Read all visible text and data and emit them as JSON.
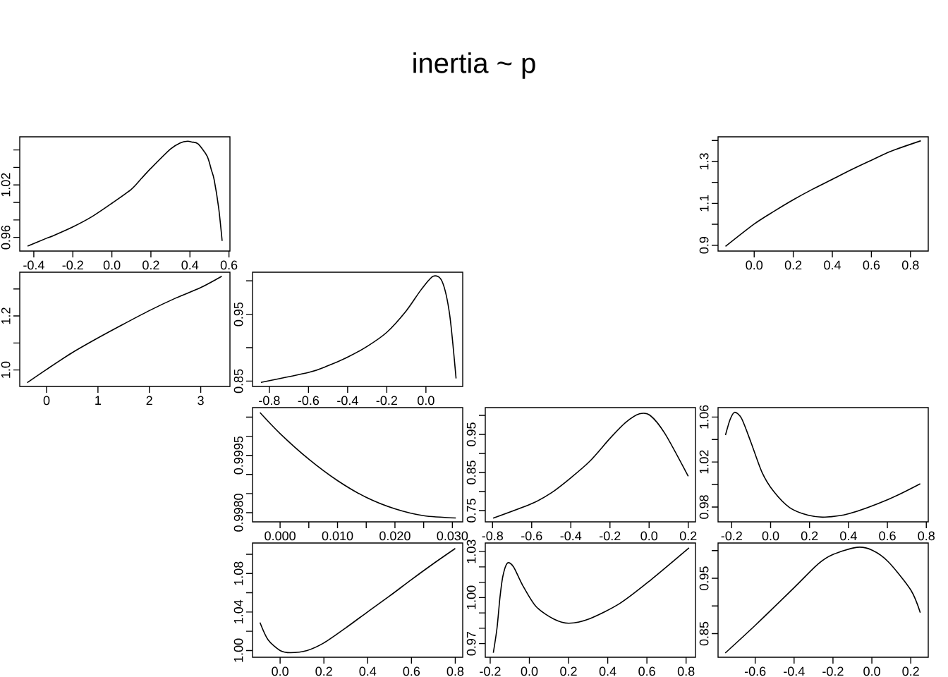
{
  "chart_data": [
    {
      "type": "line",
      "color": "#000000",
      "xlim": [
        -0.472,
        0.605
      ],
      "ylim": [
        0.9444,
        1.075
      ],
      "xticks": [
        {
          "value": -0.4,
          "label": "-0.4"
        },
        {
          "value": -0.2,
          "label": "-0.2"
        },
        {
          "value": 0,
          "label": "0.0"
        },
        {
          "value": 0.2,
          "label": "0.2"
        },
        {
          "value": 0.4,
          "label": "0.4"
        },
        {
          "value": 0.6,
          "label": "0.6"
        }
      ],
      "yticks": [
        {
          "value": 0.96,
          "label": "0.96"
        },
        {
          "value": 0.98,
          "label": null
        },
        {
          "value": 1.0,
          "label": null
        },
        {
          "value": 1.02,
          "label": "1.02"
        },
        {
          "value": 1.04,
          "label": null
        },
        {
          "value": 1.06,
          "label": null
        }
      ],
      "x": [
        -0.432,
        -0.335,
        -0.3,
        -0.2,
        -0.1,
        0,
        0.1,
        0.15,
        0.2,
        0.3,
        0.35,
        0.388,
        0.41,
        0.441,
        0.488,
        0.51,
        0.524,
        0.547,
        0.565
      ],
      "values": [
        0.95,
        0.959,
        0.962,
        0.972,
        0.984,
        0.999,
        1.015,
        1.027,
        1.039,
        1.061,
        1.068,
        1.07,
        1.069,
        1.067,
        1.053,
        1.037,
        1.026,
        0.994,
        0.956
      ]
    },
    {
      "type": "line",
      "color": "#000000",
      "xlim": [
        -0.185,
        0.891
      ],
      "ylim": [
        0.872,
        1.418
      ],
      "xticks": [
        {
          "value": 0,
          "label": "0.0"
        },
        {
          "value": 0.2,
          "label": "0.2"
        },
        {
          "value": 0.4,
          "label": "0.4"
        },
        {
          "value": 0.6,
          "label": "0.6"
        },
        {
          "value": 0.8,
          "label": "0.8"
        }
      ],
      "yticks": [
        {
          "value": 0.9,
          "label": "0.9"
        },
        {
          "value": 1.0,
          "label": null
        },
        {
          "value": 1.1,
          "label": "1.1"
        },
        {
          "value": 1.2,
          "label": null
        },
        {
          "value": 1.3,
          "label": "1.3"
        },
        {
          "value": 1.4,
          "label": null
        }
      ],
      "x": [
        -0.147,
        0,
        0.1,
        0.2,
        0.3,
        0.4,
        0.5,
        0.6,
        0.7,
        0.853
      ],
      "values": [
        0.894,
        1.001,
        1.061,
        1.117,
        1.168,
        1.215,
        1.262,
        1.306,
        1.349,
        1.399
      ]
    },
    {
      "type": "line",
      "color": "#000000",
      "xlim": [
        -0.522,
        3.569
      ],
      "ylim": [
        0.939,
        1.362
      ],
      "xticks": [
        0,
        1,
        2,
        3
      ],
      "yticks": [
        {
          "value": 1.0,
          "label": "1.0"
        },
        {
          "value": 1.1,
          "label": null
        },
        {
          "value": 1.2,
          "label": "1.2"
        },
        {
          "value": 1.3,
          "label": null
        }
      ],
      "x": [
        -0.377,
        0,
        0.49,
        1.004,
        1.5,
        2.002,
        2.5,
        3,
        3.41
      ],
      "values": [
        0.953,
        1.002,
        1.063,
        1.119,
        1.17,
        1.22,
        1.265,
        1.305,
        1.347
      ]
    },
    {
      "type": "line",
      "title": "inertia ~ p",
      "color": "#000000",
      "xlim": [
        -0.886,
        0.188
      ],
      "ylim": [
        0.842,
        1.013
      ],
      "xticks": [
        {
          "value": -0.8,
          "label": "-0.8"
        },
        {
          "value": -0.6,
          "label": "-0.6"
        },
        {
          "value": -0.4,
          "label": "-0.4"
        },
        {
          "value": -0.2,
          "label": "-0.2"
        },
        {
          "value": 0,
          "label": "0.0"
        }
      ],
      "yticks": [
        {
          "value": 0.85,
          "label": "0.85"
        },
        {
          "value": 0.9,
          "label": null
        },
        {
          "value": 0.95,
          "label": "0.95"
        },
        {
          "value": 1.0,
          "label": null
        }
      ],
      "x": [
        -0.843,
        -0.598,
        -0.5,
        -0.399,
        -0.3,
        -0.2,
        -0.101,
        -0.024,
        0.037,
        0.083,
        0.121,
        0.154
      ],
      "values": [
        0.848,
        0.863,
        0.873,
        0.886,
        0.902,
        0.923,
        0.955,
        0.987,
        1.007,
        0.999,
        0.95,
        0.854
      ]
    },
    {
      "type": "line",
      "color": "#000000",
      "xlim": [
        -0.0048,
        0.0318
      ],
      "ylim": [
        0.99776,
        1.00075
      ],
      "xticks": [
        {
          "value": 0,
          "label": "0.000"
        },
        {
          "value": 0.005,
          "label": null
        },
        {
          "value": 0.01,
          "label": "0.010"
        },
        {
          "value": 0.015,
          "label": null
        },
        {
          "value": 0.02,
          "label": "0.020"
        },
        {
          "value": 0.025,
          "label": null
        },
        {
          "value": 0.03,
          "label": "0.030"
        }
      ],
      "yticks": [
        {
          "value": 0.998,
          "label": "0.9980"
        },
        {
          "value": 0.9985,
          "label": null
        },
        {
          "value": 0.999,
          "label": null
        },
        {
          "value": 0.9995,
          "label": "0.9995"
        },
        {
          "value": 1.0,
          "label": null
        },
        {
          "value": 1.0005,
          "label": null
        }
      ],
      "x": [
        -0.0035,
        0,
        0.005,
        0.01,
        0.015,
        0.02,
        0.025,
        0.0306
      ],
      "values": [
        1.00062,
        1.00007,
        0.9994,
        0.99884,
        0.9984,
        0.9981,
        0.99792,
        0.99786
      ]
    },
    {
      "type": "line",
      "color": "#000000",
      "xlim": [
        -0.837,
        0.237
      ],
      "ylim": [
        0.7204,
        1.0204
      ],
      "xticks": [
        {
          "value": -0.8,
          "label": "-0.8"
        },
        {
          "value": -0.6,
          "label": "-0.6"
        },
        {
          "value": -0.4,
          "label": "-0.4"
        },
        {
          "value": -0.2,
          "label": "-0.2"
        },
        {
          "value": 0,
          "label": "0.0"
        },
        {
          "value": 0.2,
          "label": "0.2"
        }
      ],
      "yticks": [
        {
          "value": 0.75,
          "label": "0.75"
        },
        {
          "value": 0.8,
          "label": null
        },
        {
          "value": 0.85,
          "label": "0.85"
        },
        {
          "value": 0.9,
          "label": null
        },
        {
          "value": 0.95,
          "label": "0.95"
        },
        {
          "value": 1.0,
          "label": null
        }
      ],
      "x": [
        -0.797,
        -0.601,
        -0.501,
        -0.4,
        -0.302,
        -0.199,
        -0.118,
        -0.049,
        0.005,
        0.081,
        0.2
      ],
      "values": [
        0.73,
        0.768,
        0.796,
        0.836,
        0.88,
        0.94,
        0.982,
        1.004,
        1.0,
        0.952,
        0.84
      ]
    },
    {
      "type": "line",
      "color": "#000000",
      "xlim": [
        -0.27,
        0.81
      ],
      "ylim": [
        0.9668,
        1.0684
      ],
      "xticks": [
        {
          "value": -0.2,
          "label": "-0.2"
        },
        {
          "value": 0,
          "label": "0.0"
        },
        {
          "value": 0.2,
          "label": "0.2"
        },
        {
          "value": 0.4,
          "label": "0.4"
        },
        {
          "value": 0.6,
          "label": "0.6"
        },
        {
          "value": 0.8,
          "label": "0.8"
        }
      ],
      "yticks": [
        {
          "value": 0.98,
          "label": "0.98"
        },
        {
          "value": 1.0,
          "label": null
        },
        {
          "value": 1.02,
          "label": "1.02"
        },
        {
          "value": 1.04,
          "label": null
        },
        {
          "value": 1.06,
          "label": "1.06"
        }
      ],
      "x": [
        -0.232,
        -0.208,
        -0.185,
        -0.15,
        -0.102,
        -0.044,
        0.015,
        0.098,
        0.192,
        0.28,
        0.404,
        0.604,
        0.769
      ],
      "values": [
        1.0439,
        1.0579,
        1.0642,
        1.059,
        1.038,
        1.0108,
        0.994,
        0.9794,
        0.9727,
        0.971,
        0.9741,
        0.9867,
        1.0007
      ]
    },
    {
      "type": "line",
      "color": "#000000",
      "xlim": [
        -0.126,
        0.834
      ],
      "ylim": [
        0.993,
        1.1117
      ],
      "xticks": [
        {
          "value": 0,
          "label": "0.0"
        },
        {
          "value": 0.2,
          "label": "0.2"
        },
        {
          "value": 0.4,
          "label": "0.4"
        },
        {
          "value": 0.6,
          "label": "0.6"
        },
        {
          "value": 0.8,
          "label": "0.8"
        }
      ],
      "yticks": [
        {
          "value": 1.0,
          "label": "1.00"
        },
        {
          "value": 1.02,
          "label": null
        },
        {
          "value": 1.04,
          "label": "1.04"
        },
        {
          "value": 1.06,
          "label": null
        },
        {
          "value": 1.08,
          "label": "1.08"
        },
        {
          "value": 1.1,
          "label": null
        }
      ],
      "x": [
        -0.092,
        -0.055,
        0,
        0.048,
        0.123,
        0.2,
        0.301,
        0.4,
        0.5,
        0.6,
        0.698,
        0.8
      ],
      "values": [
        1.0291,
        1.0111,
        1.0,
        0.9978,
        1.0,
        1.0079,
        1.0237,
        1.0402,
        1.0566,
        1.0737,
        1.0899,
        1.106
      ]
    },
    {
      "type": "line",
      "color": "#000000",
      "xlim": [
        -0.225,
        0.848
      ],
      "ylim": [
        0.9611,
        1.0356
      ],
      "xticks": [
        {
          "value": -0.2,
          "label": "-0.2"
        },
        {
          "value": 0,
          "label": "0.0"
        },
        {
          "value": 0.2,
          "label": "0.2"
        },
        {
          "value": 0.4,
          "label": "0.4"
        },
        {
          "value": 0.6,
          "label": "0.6"
        },
        {
          "value": 0.8,
          "label": "0.8"
        }
      ],
      "yticks": [
        {
          "value": 0.97,
          "label": "0.97"
        },
        {
          "value": 0.98,
          "label": null
        },
        {
          "value": 0.99,
          "label": null
        },
        {
          "value": 1.0,
          "label": "1.00"
        },
        {
          "value": 1.01,
          "label": null
        },
        {
          "value": 1.02,
          "label": null
        },
        {
          "value": 1.03,
          "label": "1.03"
        }
      ],
      "x": [
        -0.184,
        -0.165,
        -0.15,
        -0.135,
        -0.112,
        -0.081,
        -0.035,
        0.034,
        0.126,
        0.202,
        0.309,
        0.462,
        0.616,
        0.815
      ],
      "values": [
        0.964,
        0.9803,
        1.0002,
        1.0141,
        1.0225,
        1.0201,
        1.0082,
        0.9942,
        0.9859,
        0.9833,
        0.9863,
        0.9962,
        1.0111,
        1.0324
      ]
    },
    {
      "type": "line",
      "color": "#000000",
      "xlim": [
        -0.791,
        0.29
      ],
      "ylim": [
        0.8074,
        1.0138
      ],
      "xticks": [
        {
          "value": -0.6,
          "label": "-0.6"
        },
        {
          "value": -0.4,
          "label": "-0.4"
        },
        {
          "value": -0.2,
          "label": "-0.2"
        },
        {
          "value": 0,
          "label": "0.0"
        },
        {
          "value": 0.2,
          "label": "0.2"
        }
      ],
      "yticks": [
        {
          "value": 0.85,
          "label": "0.85"
        },
        {
          "value": 0.9,
          "label": null
        },
        {
          "value": 0.95,
          "label": "0.95"
        },
        {
          "value": 1.0,
          "label": null
        }
      ],
      "x": [
        -0.754,
        -0.6,
        -0.4,
        -0.276,
        -0.2,
        -0.076,
        0,
        0.084,
        0.2,
        0.249
      ],
      "values": [
        0.815,
        0.865,
        0.933,
        0.976,
        0.993,
        1.006,
        1.001,
        0.98,
        0.929,
        0.888
      ]
    }
  ]
}
